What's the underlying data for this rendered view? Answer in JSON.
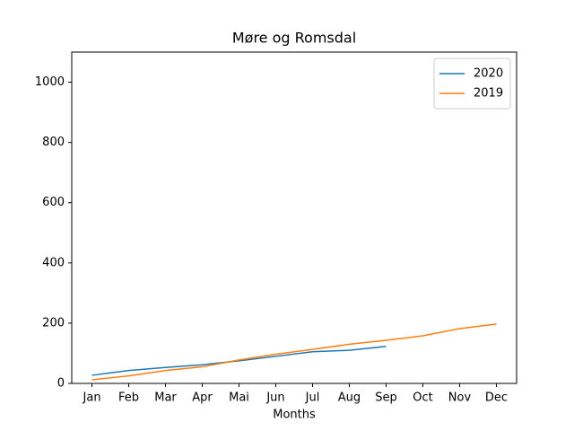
{
  "chart_data": {
    "type": "line",
    "title": "Møre og Romsdal",
    "x_label": "Months",
    "categories": [
      "Jan",
      "Feb",
      "Mar",
      "Apr",
      "Mai",
      "Jun",
      "Jul",
      "Aug",
      "Sep",
      "Oct",
      "Nov",
      "Dec"
    ],
    "series": [
      {
        "name": "2020",
        "color": "#1f77b4",
        "values": [
          27,
          43,
          53,
          62,
          75,
          90,
          105,
          110,
          123,
          null,
          null,
          null
        ]
      },
      {
        "name": "2019",
        "color": "#ff7f0e",
        "values": [
          12,
          25,
          43,
          55,
          78,
          97,
          113,
          130,
          143,
          158,
          182,
          197
        ]
      }
    ],
    "ylim": [
      0,
      1100
    ],
    "yticks": [
      0,
      200,
      400,
      600,
      800,
      1000
    ],
    "grid": false,
    "legend": "upper right"
  }
}
